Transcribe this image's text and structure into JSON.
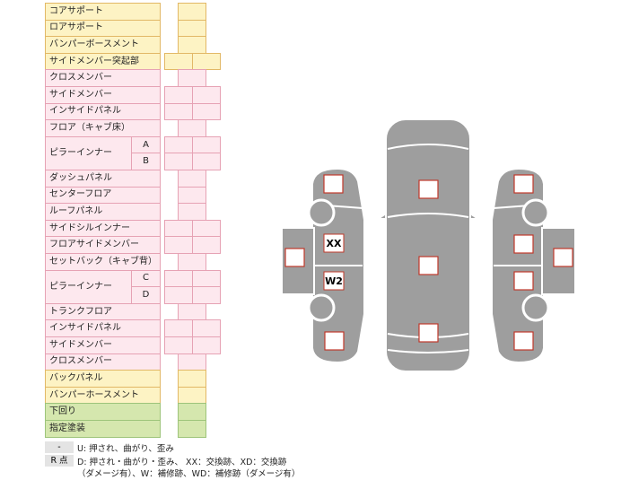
{
  "parts_table": {
    "rows": [
      {
        "label": "コアサポート",
        "color": "yellow",
        "layout": "single"
      },
      {
        "label": "ロアサポート",
        "color": "yellow",
        "layout": "single"
      },
      {
        "label": "バンパーボースメント",
        "color": "yellow",
        "layout": "single"
      },
      {
        "label": "サイドメンバー突起部",
        "color": "yellow",
        "layout": "double"
      },
      {
        "label": "クロスメンバー",
        "color": "pink",
        "layout": "single"
      },
      {
        "label": "サイドメンバー",
        "color": "pink",
        "layout": "double"
      },
      {
        "label": "インサイドパネル",
        "color": "pink",
        "layout": "double"
      },
      {
        "label": "フロア（キャブ床）",
        "color": "pink",
        "layout": "single"
      },
      {
        "label": "ピラーインナー",
        "subs": [
          "A",
          "B"
        ],
        "color": "pink",
        "layout": "double"
      },
      {
        "label": "ダッシュパネル",
        "color": "pink",
        "layout": "single"
      },
      {
        "label": "センターフロア",
        "color": "pink",
        "layout": "single"
      },
      {
        "label": "ルーフパネル",
        "color": "pink",
        "layout": "single"
      },
      {
        "label": "サイドシルインナー",
        "color": "pink",
        "layout": "double"
      },
      {
        "label": "フロアサイドメンバー",
        "color": "pink",
        "layout": "double"
      },
      {
        "label": "セットバック（キャブ背）",
        "color": "pink",
        "layout": "single"
      },
      {
        "label": "ピラーインナー",
        "subs": [
          "C",
          "D"
        ],
        "color": "pink",
        "layout": "double"
      },
      {
        "label": "トランクフロア",
        "color": "pink",
        "layout": "single"
      },
      {
        "label": "インサイドパネル",
        "color": "pink",
        "layout": "double"
      },
      {
        "label": "サイドメンバー",
        "color": "pink",
        "layout": "double"
      },
      {
        "label": "クロスメンバー",
        "color": "pink",
        "layout": "single"
      },
      {
        "label": "バックパネル",
        "color": "yellow",
        "layout": "single"
      },
      {
        "label": "バンパーホースメント",
        "color": "yellow",
        "layout": "single"
      },
      {
        "label": "下回り",
        "color": "green",
        "layout": "single"
      },
      {
        "label": "指定塗装",
        "color": "green",
        "layout": "single"
      }
    ]
  },
  "car_diagram": {
    "marks": [
      "XX",
      "W2"
    ]
  },
  "legend": {
    "rows": [
      {
        "key": "-",
        "lines": [
          "U: 押され、曲がり、歪み"
        ]
      },
      {
        "key": "R 点",
        "lines": [
          "D: 押され・曲がり・歪み、 XX：交換跡、XD：交換跡",
          "（ダメージ有）、W：補修跡、WD：補修跡（ダメージ有）"
        ]
      }
    ]
  }
}
